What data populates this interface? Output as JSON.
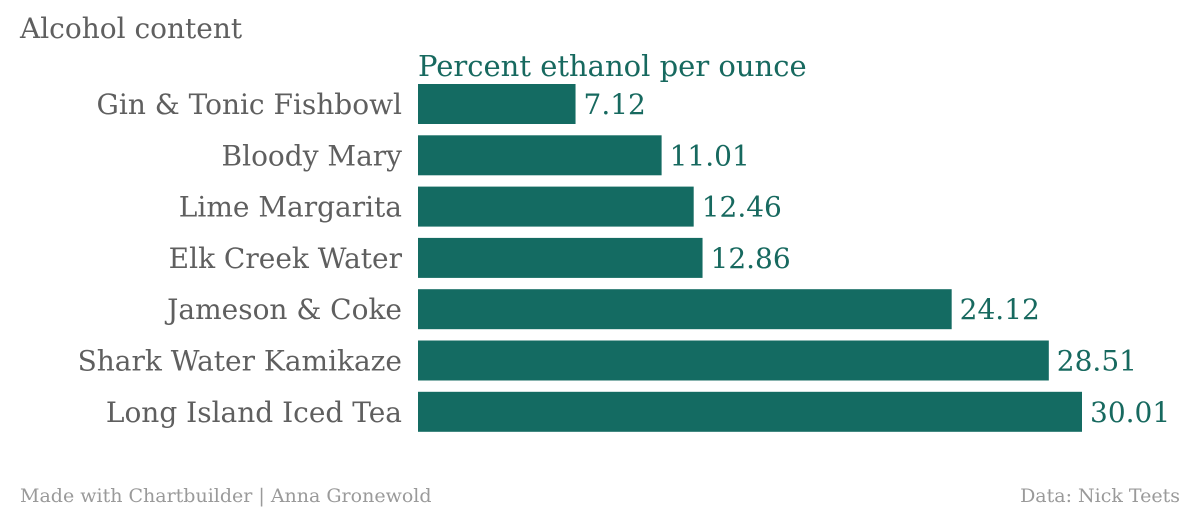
{
  "chart_data": {
    "type": "bar",
    "orientation": "horizontal",
    "title": "Alcohol content",
    "subtitle": "Percent ethanol per ounce",
    "categories": [
      "Gin & Tonic Fishbowl",
      "Bloody Mary",
      "Lime Margarita",
      "Elk Creek Water",
      "Jameson & Coke",
      "Shark Water Kamikaze",
      "Long Island Iced Tea"
    ],
    "values": [
      7.12,
      11.01,
      12.46,
      12.86,
      24.12,
      28.51,
      30.01
    ],
    "value_labels": [
      "7.12",
      "11.01",
      "12.46",
      "12.86",
      "24.12",
      "28.51",
      "30.01"
    ],
    "xlim": [
      0,
      30.01
    ],
    "grid": false,
    "bar_color": "#146b62"
  },
  "footer": {
    "credit": "Made with Chartbuilder | Anna Gronewold",
    "source": "Data: Nick Teets"
  }
}
